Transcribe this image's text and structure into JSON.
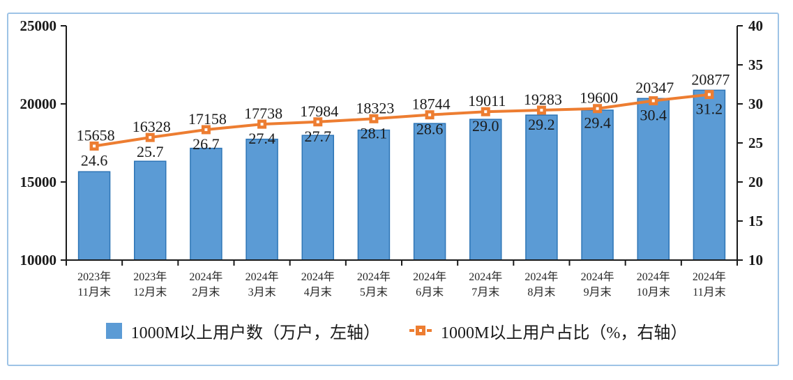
{
  "frame": {
    "border_color": "#9DC3E6"
  },
  "chart_data": {
    "type": "bar",
    "combo": true,
    "title": "",
    "categories": [
      [
        "2023年",
        "11月末"
      ],
      [
        "2023年",
        "12月末"
      ],
      [
        "2024年",
        "2月末"
      ],
      [
        "2024年",
        "3月末"
      ],
      [
        "2024年",
        "4月末"
      ],
      [
        "2024年",
        "5月末"
      ],
      [
        "2024年",
        "6月末"
      ],
      [
        "2024年",
        "7月末"
      ],
      [
        "2024年",
        "8月末"
      ],
      [
        "2024年",
        "9月末"
      ],
      [
        "2024年",
        "10月末"
      ],
      [
        "2024年",
        "11月末"
      ]
    ],
    "series": [
      {
        "name": "1000M以上用户数（万户，左轴）",
        "type": "bar",
        "axis": "left",
        "color": "#5B9BD5",
        "border_color": "#2E75B6",
        "values": [
          15658,
          16328,
          17158,
          17738,
          17984,
          18323,
          18744,
          19011,
          19283,
          19600,
          20347,
          20877
        ]
      },
      {
        "name": "1000M以上用户占比（%，右轴）",
        "type": "line",
        "axis": "right",
        "color": "#ED7D31",
        "marker": "square",
        "values": [
          24.6,
          25.7,
          26.7,
          27.4,
          27.7,
          28.1,
          28.6,
          29.0,
          29.2,
          29.4,
          30.4,
          31.2
        ]
      }
    ],
    "left_axis": {
      "min": 10000,
      "max": 25000,
      "ticks": [
        10000,
        15000,
        20000,
        25000
      ]
    },
    "right_axis": {
      "min": 10,
      "max": 40,
      "ticks": [
        10,
        15,
        20,
        25,
        30,
        35,
        40
      ]
    },
    "axis_color": "#1a1a1a",
    "label_color": "#1a1a1a",
    "xlabel_color": "#262626",
    "grid": false,
    "legend_position": "bottom"
  }
}
